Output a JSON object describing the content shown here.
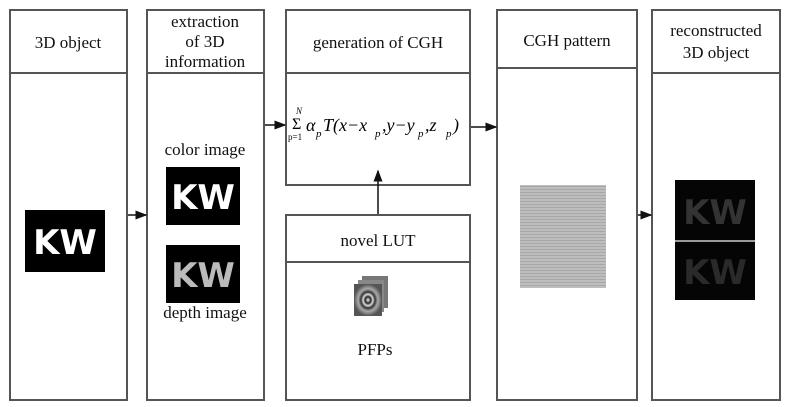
{
  "panels": [
    {
      "title": [
        "3D object"
      ],
      "image": "KW"
    },
    {
      "title": [
        "extraction",
        "of 3D",
        "information"
      ],
      "color_label": "color image",
      "color_image": "KW",
      "depth_image": "KW",
      "depth_label": "depth image"
    },
    {
      "title": [
        "generation of CGH"
      ],
      "formula": {
        "sum_top": "N",
        "sum": "Σ",
        "sum_bottom": "p=1",
        "body": "α",
        "sub": "p",
        "func": "T(x−x",
        "sub_x": "p",
        "mid": ",y−y",
        "sub_y": "p",
        "mid2": ",z",
        "sub_z": "p",
        "end": ")"
      }
    },
    {
      "title": [
        "CGH pattern"
      ]
    },
    {
      "title": [
        "reconstructed",
        "3D object"
      ],
      "image": "KW"
    }
  ],
  "lut": {
    "title": "novel LUT",
    "label": "PFPs"
  }
}
